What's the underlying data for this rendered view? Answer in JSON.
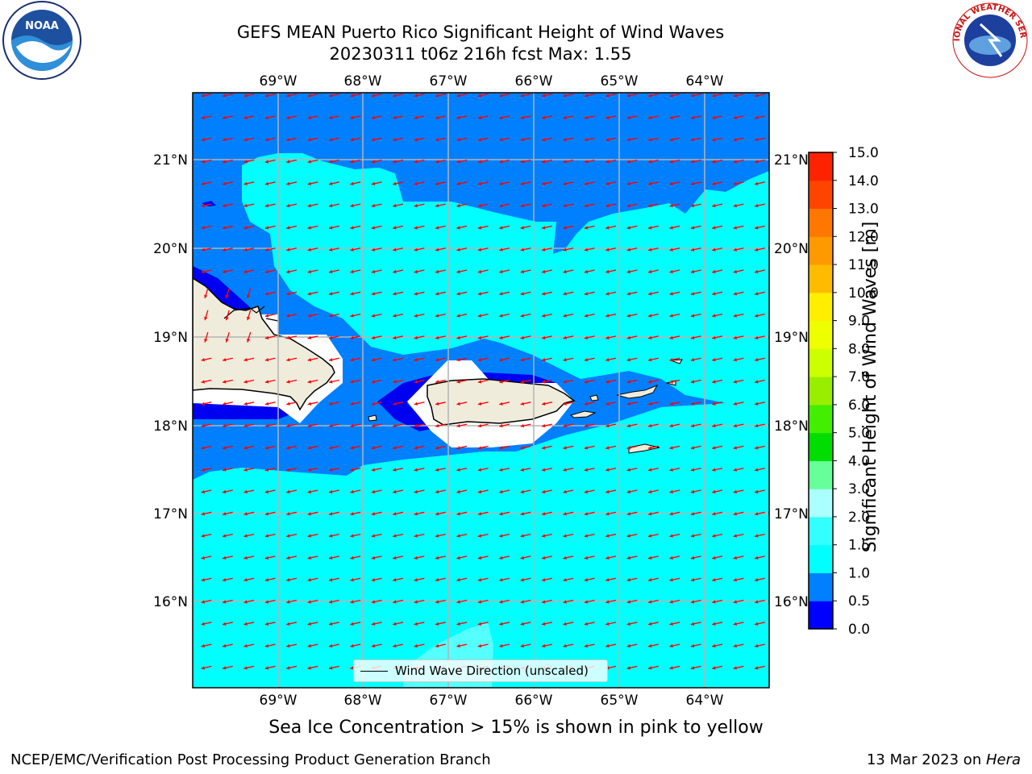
{
  "header": {
    "title_line1": "GEFS MEAN Puerto Rico Significant Height of Wind Waves",
    "title_line2": "20230311 t06z 216h fcst   Max: 1.55"
  },
  "map": {
    "lon_ticks": [
      "69°W",
      "68°W",
      "67°W",
      "66°W",
      "65°W",
      "64°W"
    ],
    "lat_ticks": [
      "21°N",
      "20°N",
      "19°N",
      "18°N",
      "17°N",
      "16°N"
    ],
    "extent": {
      "lon_min": -70.0,
      "lon_max": -63.25,
      "lat_min": 15.0,
      "lat_max": 21.75
    },
    "arrow_direction": "east-northeast to west-southwest",
    "colors": {
      "ocean_light": "#00ffff",
      "ocean_mid": "#0080ff",
      "ocean_deep": "#0000f0",
      "land": "#efecdc",
      "arrow": "#ff0000"
    }
  },
  "legend": {
    "label": "Wind Wave Direction (unscaled)"
  },
  "colorbar": {
    "label": "Significant Height of Wind Waves [m]",
    "ticks": [
      "0.0",
      "0.5",
      "1.0",
      "1.5",
      "2.0",
      "3.0",
      "4.0",
      "5.0",
      "6.0",
      "7.0",
      "8.0",
      "9.0",
      "10.0",
      "11.0",
      "12.0",
      "13.0",
      "14.0",
      "15.0"
    ],
    "colors": [
      "#0000ff",
      "#0080ff",
      "#00ffff",
      "#33ffff",
      "#aaffff",
      "#66ff99",
      "#00dd00",
      "#44ee00",
      "#99ee00",
      "#ccff00",
      "#eeff00",
      "#ffee00",
      "#ffbb00",
      "#ff9900",
      "#ff7700",
      "#ff4400",
      "#ff2200"
    ]
  },
  "caption": "Sea Ice Concentration > 15% is shown in pink to yellow",
  "footer": {
    "left": "NCEP/EMC/Verification Post Processing Product Generation Branch",
    "date": "13 Mar 2023 on ",
    "host": "Hera"
  },
  "logos": {
    "noaa": "NOAA",
    "nws": "NATIONAL WEATHER SERVICE"
  }
}
